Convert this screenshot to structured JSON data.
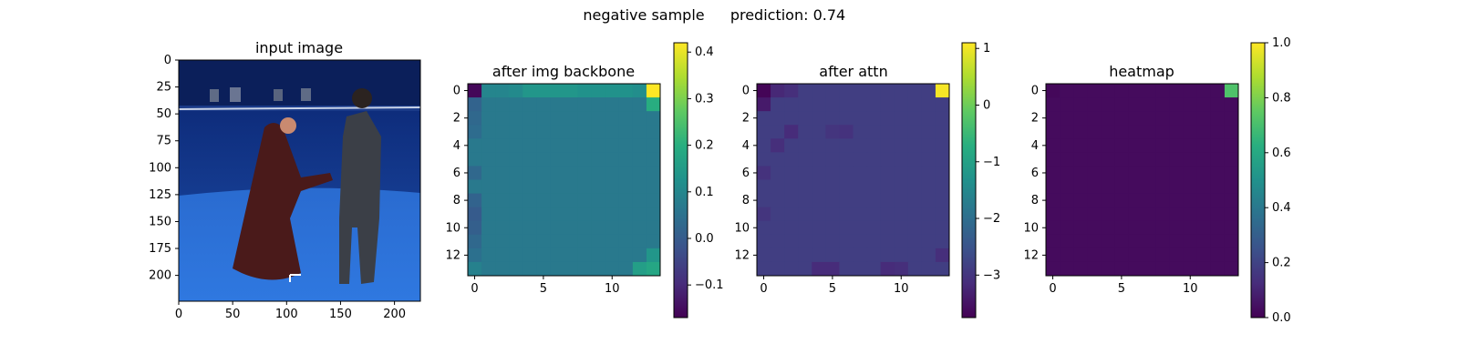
{
  "figure": {
    "suptitle_left": "negative sample",
    "suptitle_right": "prediction: 0.74"
  },
  "chart_data": [
    {
      "type": "image",
      "title": "input image",
      "xticks": [
        0,
        50,
        100,
        150,
        200
      ],
      "yticks": [
        0,
        25,
        50,
        75,
        100,
        125,
        150,
        175,
        200
      ],
      "xlim": [
        0,
        224
      ],
      "ylim": [
        0,
        224
      ],
      "description_colors": {
        "background": "#1e3f8a",
        "floor": "#2a6fd4",
        "wall": "#0f2a6e"
      }
    },
    {
      "type": "heatmap",
      "title": "after img backbone",
      "grid_size": 14,
      "xticks": [
        0,
        5,
        10
      ],
      "yticks": [
        0,
        2,
        4,
        6,
        8,
        10,
        12
      ],
      "colorbar": {
        "vmin": -0.17,
        "vmax": 0.42,
        "ticks": [
          -0.1,
          0.0,
          0.1,
          0.2,
          0.3,
          0.4
        ],
        "tick_labels": [
          "−0.1",
          "0.0",
          "0.1",
          "0.2",
          "0.3",
          "0.4"
        ]
      },
      "base_value": 0.07,
      "cells": [
        {
          "r": 0,
          "c": 0,
          "v": -0.16
        },
        {
          "r": 0,
          "c": 13,
          "v": 0.42
        },
        {
          "r": 1,
          "c": 13,
          "v": 0.2
        },
        {
          "r": 0,
          "c": 4,
          "v": 0.14
        },
        {
          "r": 0,
          "c": 5,
          "v": 0.14
        },
        {
          "r": 0,
          "c": 6,
          "v": 0.14
        },
        {
          "r": 0,
          "c": 7,
          "v": 0.14
        },
        {
          "r": 0,
          "c": 8,
          "v": 0.13
        },
        {
          "r": 0,
          "c": 9,
          "v": 0.13
        },
        {
          "r": 0,
          "c": 10,
          "v": 0.13
        },
        {
          "r": 0,
          "c": 11,
          "v": 0.13
        },
        {
          "r": 0,
          "c": 12,
          "v": 0.12
        },
        {
          "r": 0,
          "c": 1,
          "v": 0.1
        },
        {
          "r": 0,
          "c": 2,
          "v": 0.1
        },
        {
          "r": 0,
          "c": 3,
          "v": 0.11
        },
        {
          "r": 1,
          "c": 0,
          "v": 0.02
        },
        {
          "r": 2,
          "c": 0,
          "v": 0.03
        },
        {
          "r": 3,
          "c": 0,
          "v": 0.04
        },
        {
          "r": 6,
          "c": 0,
          "v": 0.03
        },
        {
          "r": 8,
          "c": 0,
          "v": 0.02
        },
        {
          "r": 9,
          "c": 0,
          "v": 0.0
        },
        {
          "r": 10,
          "c": 0,
          "v": 0.01
        },
        {
          "r": 11,
          "c": 0,
          "v": 0.03
        },
        {
          "r": 12,
          "c": 0,
          "v": 0.05
        },
        {
          "r": 13,
          "c": 0,
          "v": 0.09
        },
        {
          "r": 13,
          "c": 12,
          "v": 0.16
        },
        {
          "r": 13,
          "c": 13,
          "v": 0.18
        },
        {
          "r": 12,
          "c": 13,
          "v": 0.14
        }
      ]
    },
    {
      "type": "heatmap",
      "title": "after attn",
      "grid_size": 14,
      "xticks": [
        0,
        5,
        10
      ],
      "yticks": [
        0,
        2,
        4,
        6,
        8,
        10,
        12
      ],
      "colorbar": {
        "vmin": -3.75,
        "vmax": 1.1,
        "ticks": [
          -3,
          -2,
          -1,
          0,
          1
        ],
        "tick_labels": [
          "−3",
          "−2",
          "−1",
          "0",
          "1"
        ]
      },
      "base_value": -2.85,
      "cells": [
        {
          "r": 0,
          "c": 0,
          "v": -3.7
        },
        {
          "r": 0,
          "c": 13,
          "v": 1.05
        },
        {
          "r": 1,
          "c": 0,
          "v": -3.4
        },
        {
          "r": 0,
          "c": 1,
          "v": -3.2
        },
        {
          "r": 0,
          "c": 2,
          "v": -3.1
        },
        {
          "r": 3,
          "c": 2,
          "v": -3.15
        },
        {
          "r": 4,
          "c": 1,
          "v": -3.1
        },
        {
          "r": 3,
          "c": 6,
          "v": -3.05
        },
        {
          "r": 3,
          "c": 5,
          "v": -3.0
        },
        {
          "r": 13,
          "c": 4,
          "v": -3.15
        },
        {
          "r": 13,
          "c": 5,
          "v": -3.15
        },
        {
          "r": 13,
          "c": 9,
          "v": -3.15
        },
        {
          "r": 13,
          "c": 10,
          "v": -3.1
        },
        {
          "r": 6,
          "c": 0,
          "v": -3.05
        },
        {
          "r": 9,
          "c": 0,
          "v": -3.0
        },
        {
          "r": 12,
          "c": 13,
          "v": -3.1
        }
      ]
    },
    {
      "type": "heatmap",
      "title": "heatmap",
      "grid_size": 14,
      "xticks": [
        0,
        5,
        10
      ],
      "yticks": [
        0,
        2,
        4,
        6,
        8,
        10,
        12
      ],
      "colorbar": {
        "vmin": 0.0,
        "vmax": 1.0,
        "ticks": [
          0.0,
          0.2,
          0.4,
          0.6,
          0.8,
          1.0
        ],
        "tick_labels": [
          "0.0",
          "0.2",
          "0.4",
          "0.6",
          "0.8",
          "1.0"
        ]
      },
      "base_value": 0.03,
      "cells": [
        {
          "r": 0,
          "c": 13,
          "v": 0.72
        },
        {
          "r": 0,
          "c": 0,
          "v": 0.02
        }
      ]
    }
  ]
}
